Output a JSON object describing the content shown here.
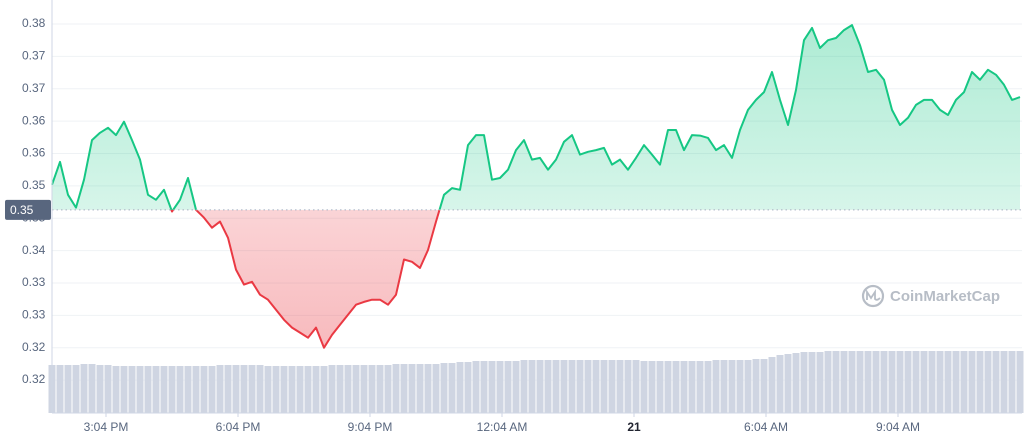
{
  "chart_data": {
    "type": "line",
    "series": [
      {
        "name": "Price",
        "color_up": "#16c784",
        "color_down": "#ea3943",
        "values": [
          0.3519,
          0.356,
          0.3501,
          0.3478,
          0.3528,
          0.3599,
          0.3612,
          0.3621,
          0.3608,
          0.3632,
          0.3599,
          0.3564,
          0.3501,
          0.3492,
          0.351,
          0.3471,
          0.3492,
          0.3531,
          0.3474,
          0.346,
          0.3442,
          0.3453,
          0.3424,
          0.3367,
          0.334,
          0.3345,
          0.3322,
          0.3313,
          0.3295,
          0.3277,
          0.3263,
          0.3254,
          0.3245,
          0.3263,
          0.3227,
          0.325,
          0.3268,
          0.3286,
          0.3304,
          0.3309,
          0.3313,
          0.3313,
          0.3304,
          0.3322,
          0.3385,
          0.3381,
          0.337,
          0.3402,
          0.3453,
          0.3501,
          0.3513,
          0.351,
          0.359,
          0.3608,
          0.3608,
          0.3528,
          0.3531,
          0.3546,
          0.3581,
          0.3599,
          0.3564,
          0.3567,
          0.3546,
          0.3564,
          0.3596,
          0.3608,
          0.3573,
          0.3578,
          0.3581,
          0.3585,
          0.3555,
          0.3564,
          0.3546,
          0.3567,
          0.359,
          0.3573,
          0.3555,
          0.3617,
          0.3617,
          0.3581,
          0.3608,
          0.3607,
          0.3603,
          0.3581,
          0.359,
          0.3567,
          0.3617,
          0.3653,
          0.3671,
          0.3685,
          0.3721,
          0.3671,
          0.3626,
          0.3689,
          0.3778,
          0.38,
          0.3764,
          0.3778,
          0.3782,
          0.3796,
          0.3805,
          0.3769,
          0.3721,
          0.3725,
          0.3707,
          0.3653,
          0.3626,
          0.3639,
          0.3662,
          0.3671,
          0.3671,
          0.3653,
          0.3644,
          0.3671,
          0.3685,
          0.3721,
          0.3707,
          0.3725,
          0.3716,
          0.3698,
          0.3671,
          0.3676
        ]
      }
    ],
    "volume": {
      "color": "#cfd5e2",
      "ylim": [
        0,
        100
      ],
      "values": [
        24,
        24,
        24,
        24,
        24.5,
        24.5,
        24,
        24,
        23.5,
        23.5,
        23.5,
        23.5,
        23.5,
        23.5,
        23.5,
        23.5,
        23.5,
        23.5,
        23.5,
        23.5,
        23.5,
        24,
        24,
        24,
        24,
        24,
        24,
        23.5,
        23.5,
        23.5,
        23.5,
        23.5,
        23.5,
        23.5,
        23.5,
        24,
        24,
        24,
        24,
        24,
        24,
        24,
        24,
        24.5,
        24.5,
        24.5,
        24.5,
        24.5,
        24.5,
        25,
        25,
        25.5,
        25.5,
        26,
        26,
        26,
        26,
        26,
        26,
        26.5,
        26.5,
        26.5,
        26.5,
        26.5,
        26.5,
        26.5,
        26.5,
        26.5,
        26.5,
        26.5,
        26.5,
        26.5,
        26.5,
        26.5,
        26,
        26,
        26,
        26,
        26,
        26,
        26,
        26,
        26,
        26.5,
        26.5,
        26.5,
        26.5,
        26.5,
        27,
        27,
        28,
        29,
        29.5,
        30,
        30.5,
        30.5,
        30.5,
        31,
        31,
        31,
        31,
        31,
        31,
        31,
        31,
        31,
        31,
        31,
        31,
        31,
        31,
        31,
        31,
        31,
        31,
        31,
        31,
        31,
        31,
        31,
        31,
        31
      ]
    },
    "baseline": {
      "value": 0.3474,
      "label": "0.35"
    },
    "xlim": [
      0,
      121
    ],
    "xticks": [
      {
        "value": 6.75,
        "label": "3:04 PM"
      },
      {
        "value": 23.25,
        "label": "6:04 PM"
      },
      {
        "value": 39.75,
        "label": "9:04 PM"
      },
      {
        "value": 56.25,
        "label": "12:04 AM"
      },
      {
        "value": 72.75,
        "label": "21",
        "bold": true
      },
      {
        "value": 89.25,
        "label": "6:04 AM"
      },
      {
        "value": 105.75,
        "label": "9:04 AM"
      }
    ],
    "ylim": [
      0.311,
      0.385
    ],
    "yticks": [
      {
        "value": 0.3807,
        "label": "0.38"
      },
      {
        "value": 0.3749,
        "label": "0.37"
      },
      {
        "value": 0.3691,
        "label": "0.37"
      },
      {
        "value": 0.3633,
        "label": "0.36"
      },
      {
        "value": 0.3575,
        "label": "0.36"
      },
      {
        "value": 0.3517,
        "label": "0.35"
      },
      {
        "value": 0.3459,
        "label": "0.35"
      },
      {
        "value": 0.3401,
        "label": "0.34"
      },
      {
        "value": 0.3343,
        "label": "0.33"
      },
      {
        "value": 0.3285,
        "label": "0.33"
      },
      {
        "value": 0.3227,
        "label": "0.32"
      },
      {
        "value": 0.3169,
        "label": "0.32"
      }
    ],
    "grid": true,
    "watermark": "CoinMarketCap"
  }
}
